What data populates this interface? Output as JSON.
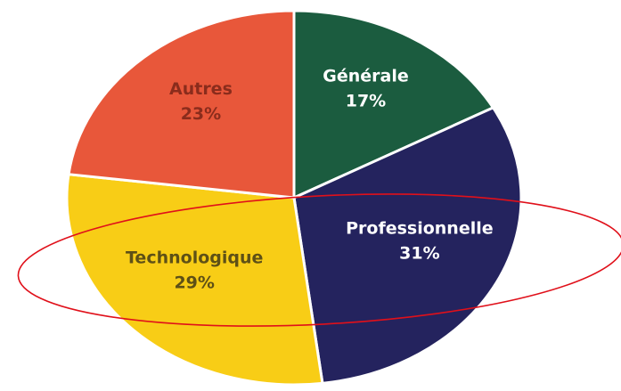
{
  "chart_data": {
    "type": "pie",
    "categories": [
      "Générale",
      "Professionnelle",
      "Technologique",
      "Autres"
    ],
    "values": [
      17,
      31,
      29,
      23
    ],
    "value_labels": [
      "17%",
      "31%",
      "29%",
      "23%"
    ],
    "colors": [
      "#1b5c3f",
      "#24235e",
      "#f8cd16",
      "#e8573a"
    ]
  }
}
